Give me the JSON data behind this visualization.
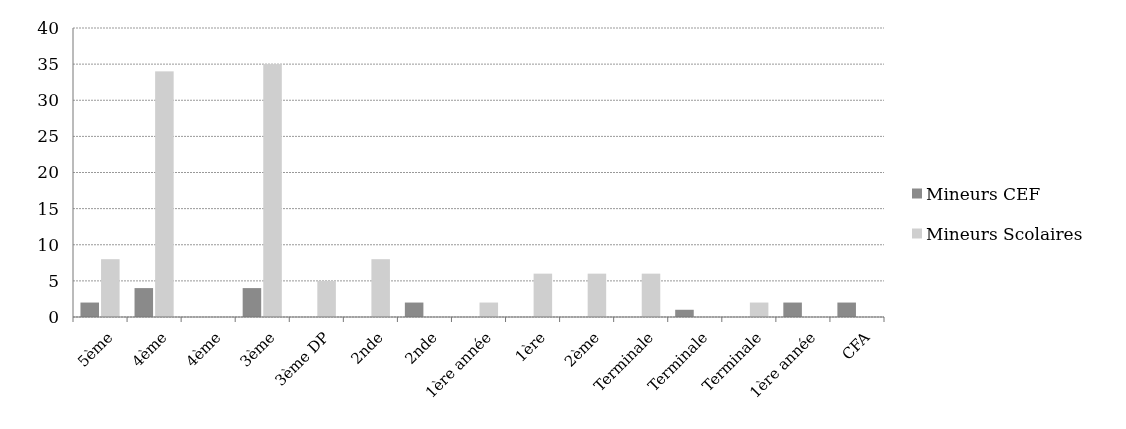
{
  "chart_data": {
    "type": "bar",
    "categories": [
      "5ème",
      "4ème",
      "4ème",
      "3ème",
      "3ème DP",
      "2nde",
      "2nde",
      "1ère année",
      "1ère",
      "2ème",
      "Terminale",
      "Terminale",
      "Terminale",
      "1ère année",
      "CFA"
    ],
    "series": [
      {
        "name": "Mineurs CEF",
        "color": "#8a8a8a",
        "values": [
          2,
          4,
          0,
          4,
          0,
          0,
          2,
          0,
          0,
          0,
          0,
          1,
          0,
          2,
          2
        ]
      },
      {
        "name": "Mineurs Scolaires",
        "color": "#cfcfcf",
        "values": [
          8,
          34,
          0,
          35,
          5,
          8,
          0,
          2,
          6,
          6,
          6,
          0,
          2,
          0,
          0
        ]
      }
    ],
    "ylim": [
      0,
      40
    ],
    "yticks": [
      0,
      5,
      10,
      15,
      20,
      25,
      30,
      35,
      40
    ],
    "grid": "y",
    "legend": "right"
  }
}
